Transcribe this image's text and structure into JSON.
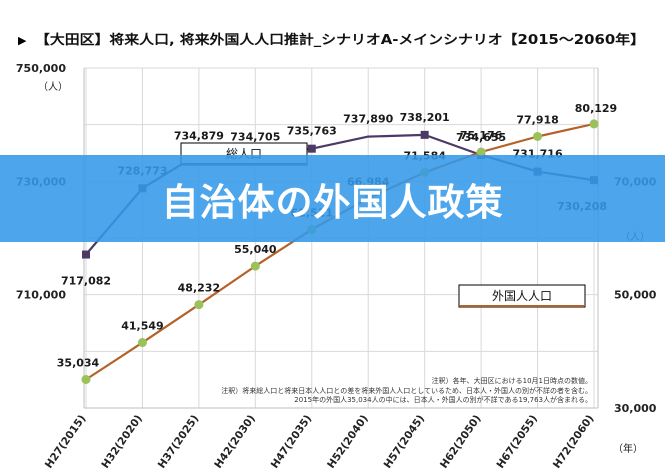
{
  "banner": {
    "text": "自治体の外国人政策"
  },
  "chart_data": {
    "type": "line",
    "title": "【大田区】将来人口, 将来外国人人口推計_シナリオA-メインシナリオ【2015～2060年】",
    "title_bullet": "▶",
    "categories": [
      "H27(2015)",
      "H32(2020)",
      "H37(2025)",
      "H42(2030)",
      "H47(2035)",
      "H52(2040)",
      "H57(2045)",
      "H62(2050)",
      "H67(2055)",
      "H72(2060)"
    ],
    "x_unit": "（年）",
    "grid": true,
    "series": [
      {
        "name": "総人口",
        "axis": "left",
        "color": "#4b3a66",
        "label_color": "#1a1a1a",
        "values": [
          717082,
          728773,
          734879,
          734705,
          735763,
          737890,
          738201,
          734655,
          731716,
          730208
        ],
        "value_labels": [
          "717,082",
          "728,773",
          "734,879",
          "734,705",
          "735,763",
          "737,890",
          "738,201",
          "734,655",
          "731,716",
          "730,208"
        ],
        "marker_indices": [
          0,
          1,
          2,
          3,
          4,
          6,
          7,
          8,
          9
        ]
      },
      {
        "name": "外国人人口",
        "axis": "right",
        "color": "#b5622a",
        "marker_color": "#9ac15a",
        "label_color": "#1a1a1a",
        "values": [
          35034,
          41549,
          48232,
          55040,
          61511,
          66984,
          71584,
          75176,
          77918,
          80129
        ],
        "value_labels": [
          "35,034",
          "41,549",
          "48,232",
          "55,040",
          "61,511",
          "66,984",
          "71,584",
          "75,176",
          "77,918",
          "80,129"
        ],
        "marker_indices": [
          0,
          1,
          2,
          3,
          4,
          5,
          6,
          7,
          8,
          9
        ]
      }
    ],
    "left_axis": {
      "min": 690000,
      "max": 750000,
      "ticks": [
        "750,000",
        "730,000",
        "710,000"
      ],
      "tick_values": [
        750000,
        730000,
        710000
      ],
      "unit": "（人）"
    },
    "right_axis": {
      "min": 30000,
      "max": 90000,
      "ticks": [
        "70,000",
        "50,000",
        "30,000"
      ],
      "tick_values": [
        70000,
        50000,
        30000
      ],
      "unit": "（人）"
    },
    "notes": [
      "注釈）各年、大田区における10月1日時点の数値。",
      "注釈）将来総人口と将来日本人人口との差を将来外国人人口としているため、日本人・外国人の別が不詳の者を含む。",
      "2015年の外国人35,034人の中には、日本人・外国人の別が不詳である19,763人が含まれる。"
    ]
  }
}
